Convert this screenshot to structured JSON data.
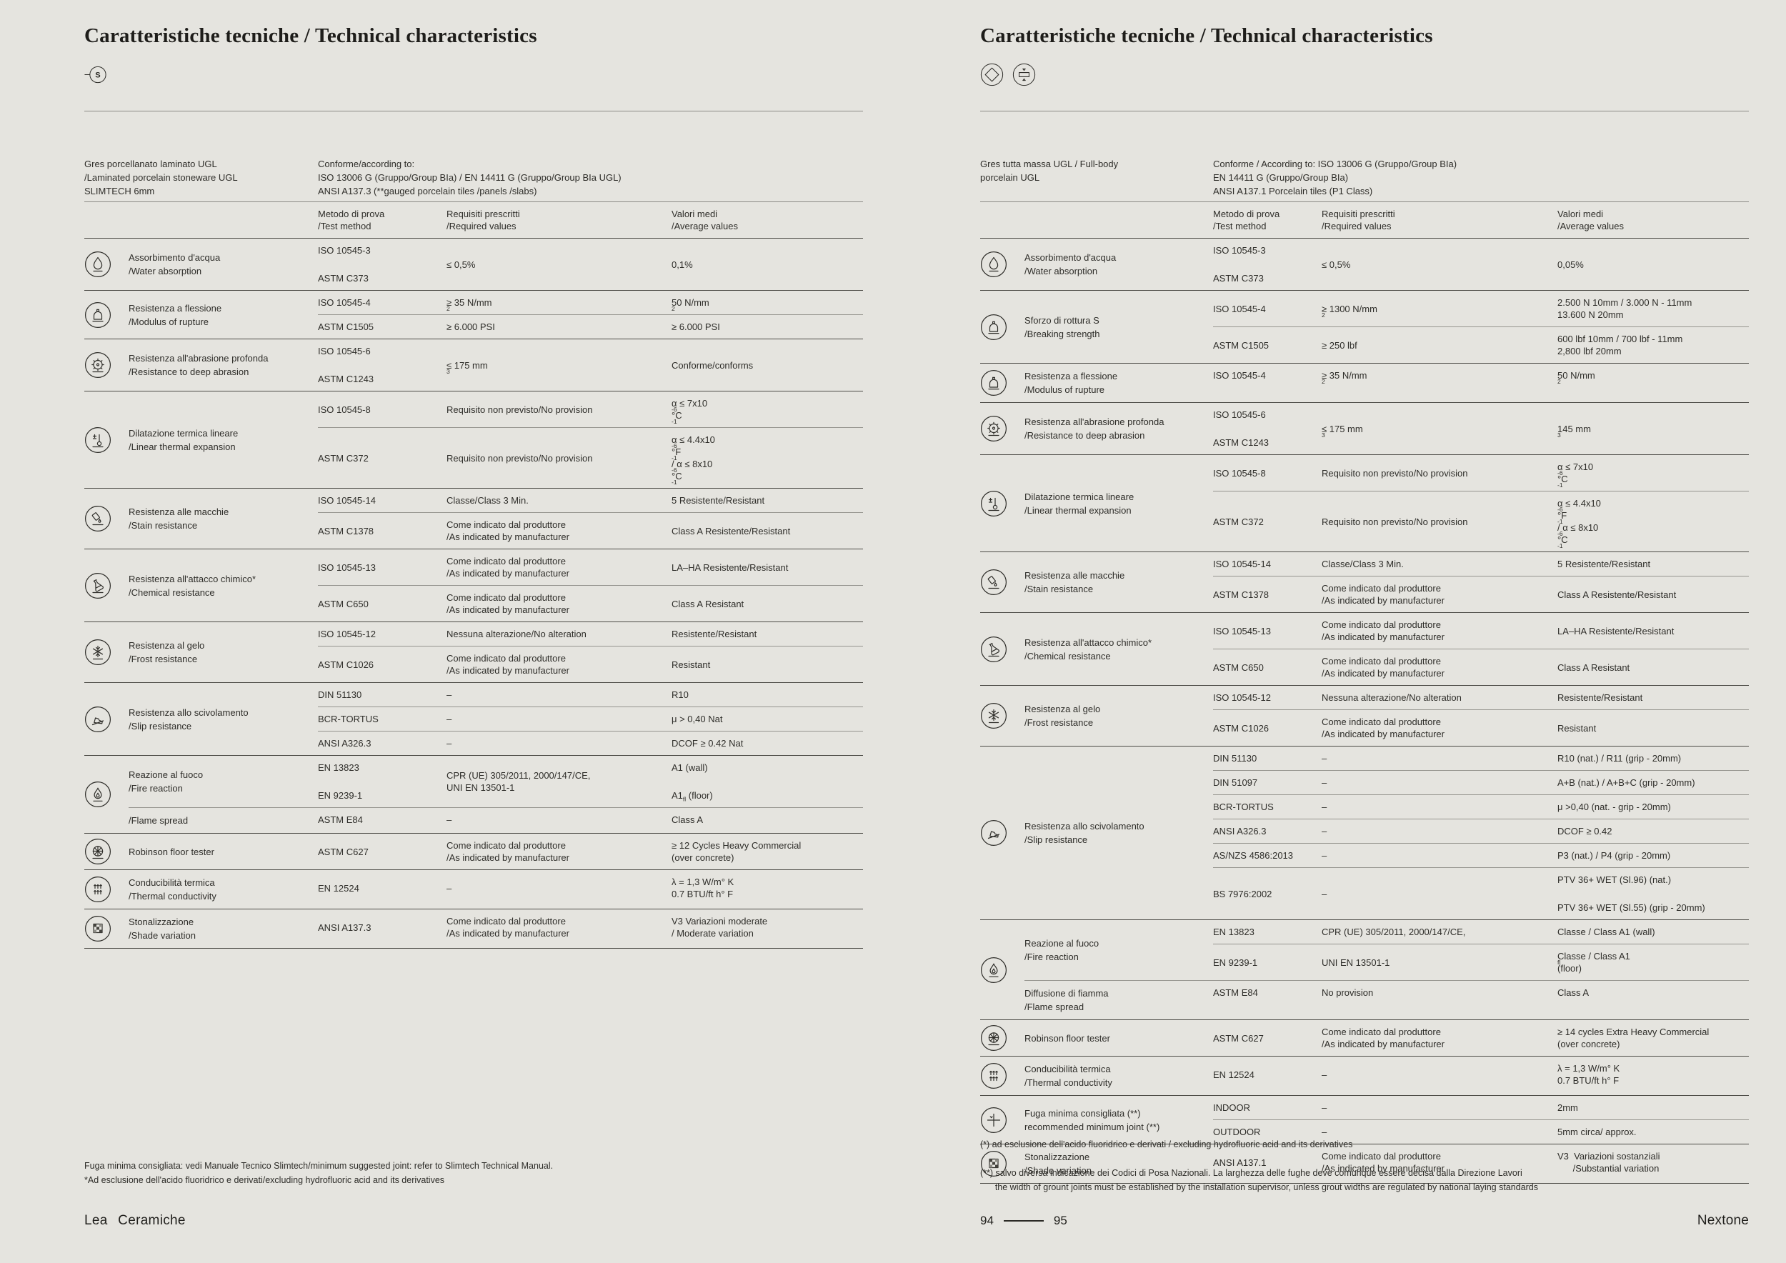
{
  "pages": [
    {
      "title": "Caratteristiche tecniche / Technical characteristics",
      "title_icons": [
        "slimtech"
      ],
      "intro_left": "Gres porcellanato laminato UGL<br>/Laminated porcelain stoneware UGL<br>SLIMTECH 6mm",
      "intro_right": "Conforme/according to:<br>ISO 13006 G (Gruppo/Group BIa) / EN 14411 G (Gruppo/Group BIa UGL)<br>ANSI A137.3 (**gauged porcelain tiles /panels /slabs)",
      "columns": {
        "method": "Metodo di prova<br>/Test method",
        "required": "Requisiti prescritti<br>/Required values",
        "average": "Valori medi<br>/Average values"
      },
      "groups": [
        {
          "icon": "droplet",
          "sections": [
            {
              "label": "Assorbimento d'acqua<br>/Water absorption",
              "rows": [
                {
                  "m": "ISO 10545-3||ASTM C373",
                  "q": "≤ 0,5%",
                  "v": "0,1%"
                }
              ]
            }
          ]
        },
        {
          "icon": "press",
          "sections": [
            {
              "label": "Resistenza a flessione<br>/Modulus of rupture",
              "rows": [
                {
                  "m": "ISO 10545-4",
                  "q": "≥ 35 N/mm<sup>2</sup>",
                  "v": "50 N/mm<sup>2</sup>"
                },
                {
                  "m": "ASTM C1505",
                  "q": "≥ 6.000 PSI",
                  "v": "≥ 6.000 PSI"
                }
              ]
            }
          ]
        },
        {
          "icon": "gear",
          "sections": [
            {
              "label": "Resistenza all'abrasione profonda<br>/Resistance to deep abrasion",
              "rows": [
                {
                  "m": "ISO 10545-6||ASTM C1243",
                  "q": "≤ 175 mm<sup>3</sup>",
                  "v": "Conforme/conforms"
                }
              ]
            }
          ]
        },
        {
          "icon": "thermometer",
          "sections": [
            {
              "label": "Dilatazione termica lineare<br>/Linear thermal expansion",
              "rows": [
                {
                  "m": "ISO 10545-8",
                  "q": "Requisito non previsto/No provision",
                  "v": "α ≤ 7x10<sup>-6</sup> °C<sup>-1</sup>"
                },
                {
                  "m": "ASTM C372",
                  "q": "Requisito non previsto/No provision",
                  "v": "α ≤ 4.4x10<sup>-6</sup> °F<sup>-1</sup> / α ≤ 8x10<sup>-6</sup> °C<sup>-1</sup>"
                }
              ]
            }
          ]
        },
        {
          "icon": "stain",
          "sections": [
            {
              "label": "Resistenza alle macchie<br>/Stain resistance",
              "rows": [
                {
                  "m": "ISO 10545-14",
                  "q": "Classe/Class 3 Min.",
                  "v": "5 Resistente/Resistant"
                },
                {
                  "m": "ASTM C1378",
                  "q": "Come indicato dal produttore<br>/As indicated by manufacturer",
                  "v": "Class A Resistente/Resistant"
                }
              ]
            }
          ]
        },
        {
          "icon": "flask",
          "sections": [
            {
              "label": "Resistenza all'attacco chimico*<br>/Chemical resistance",
              "rows": [
                {
                  "m": "ISO 10545-13",
                  "q": "Come indicato dal produttore<br>/As indicated by manufacturer",
                  "v": "LA–HA Resistente/Resistant"
                },
                {
                  "m": "ASTM C650",
                  "q": "Come indicato dal produttore<br>/As indicated by manufacturer",
                  "v": "Class A Resistant"
                }
              ]
            }
          ]
        },
        {
          "icon": "snowflake",
          "sections": [
            {
              "label": "Resistenza al gelo<br>/Frost resistance",
              "rows": [
                {
                  "m": "ISO 10545-12",
                  "q": "Nessuna alterazione/No alteration",
                  "v": "Resistente/Resistant"
                },
                {
                  "m": "ASTM C1026",
                  "q": "Come indicato dal produttore<br>/As indicated by manufacturer",
                  "v": "Resistant"
                }
              ]
            }
          ]
        },
        {
          "icon": "shoe",
          "sections": [
            {
              "label": "Resistenza allo scivolamento<br>/Slip resistance",
              "rows": [
                {
                  "m": "DIN 51130",
                  "q": "–",
                  "v": "R10"
                },
                {
                  "m": "BCR-TORTUS",
                  "q": "–",
                  "v": "μ > 0,40 Nat"
                },
                {
                  "m": "ANSI A326.3",
                  "q": "–",
                  "v": "DCOF ≥ 0.42 Nat"
                }
              ]
            }
          ]
        },
        {
          "icon": "flame",
          "sections": [
            {
              "label": "Reazione al fuoco<br>/Fire reaction",
              "rows": [
                {
                  "m": "EN 13823||EN 9239-1",
                  "q": "CPR (UE) 305/2011, 2000/147/CE,<br>UNI EN 13501-1",
                  "v": "A1 (wall)||A1<sub>fl</sub> (floor)"
                }
              ]
            },
            {
              "label": "/Flame spread",
              "rows": [
                {
                  "m": "ASTM E84",
                  "q": "–",
                  "v": "Class A"
                }
              ]
            }
          ]
        },
        {
          "icon": "wheel",
          "sections": [
            {
              "label": "Robinson floor tester",
              "rows": [
                {
                  "m": "ASTM C627",
                  "q": "Come indicato dal produttore<br>/As indicated by manufacturer",
                  "v": "≥ 12 Cycles Heavy Commercial<br>(over concrete)"
                }
              ]
            }
          ]
        },
        {
          "icon": "heat-arrows",
          "sections": [
            {
              "label": "Conducibilità termica<br>/Thermal conductivity",
              "rows": [
                {
                  "m": "EN 12524",
                  "q": "–",
                  "v": "λ = 1,3 W/m° K<br>0.7 BTU/ft h° F"
                }
              ]
            }
          ]
        },
        {
          "icon": "checkerboard",
          "sections": [
            {
              "label": "Stonalizzazione<br>/Shade variation",
              "rows": [
                {
                  "m": "ANSI A137.3",
                  "q": "Come indicato dal produttore<br>/As indicated by manufacturer",
                  "v": "V3 Variazioni moderate<br>/ Moderate variation"
                }
              ]
            }
          ]
        }
      ],
      "footnotes_html": "Fuga minima consigliata: vedi Manuale Tecnico Slimtech/minimum suggested joint: refer to Slimtech Technical Manual.<br>*Ad esclusione dell'acido fluoridrico e derivati/excluding hydrofluoric acid and its derivatives",
      "footer": {
        "brand": "Lea Ceramiche"
      }
    },
    {
      "title": "Caratteristiche tecniche / Technical characteristics",
      "title_icons": [
        "diamond",
        "thickness"
      ],
      "intro_left": "Gres tutta massa UGL / Full-body<br>porcelain UGL",
      "intro_right": "Conforme / According to: ISO 13006 G (Gruppo/Group BIa)<br>EN 14411 G (Gruppo/Group BIa)<br>ANSI A137.1 Porcelain tiles (P1 Class)",
      "columns": {
        "method": "Metodo di prova<br>/Test method",
        "required": "Requisiti prescritti<br>/Required values",
        "average": "Valori medi<br>/Average values"
      },
      "groups": [
        {
          "icon": "droplet",
          "sections": [
            {
              "label": "Assorbimento d'acqua<br>/Water absorption",
              "rows": [
                {
                  "m": "ISO 10545-3||ASTM C373",
                  "q": "≤ 0,5%",
                  "v": "0,05%"
                }
              ]
            }
          ]
        },
        {
          "icon": "press",
          "sections": [
            {
              "label": "Sforzo di rottura S<br>/Breaking strength",
              "rows": [
                {
                  "m": "ISO 10545-4",
                  "q": "≥ 1300 N/mm<sup>2</sup>",
                  "v": "2.500 N 10mm / 3.000 N - 11mm<br>13.600 N 20mm"
                },
                {
                  "m": "ASTM C1505",
                  "q": "≥ 250 lbf",
                  "v": "600 lbf 10mm / 700 lbf - 11mm<br>2,800 lbf 20mm"
                }
              ]
            }
          ]
        },
        {
          "icon": "press",
          "sections": [
            {
              "label": "Resistenza a flessione<br>/Modulus of rupture",
              "rows": [
                {
                  "m": "ISO 10545-4",
                  "q": "≥ 35 N/mm<sup>2</sup>",
                  "v": "50 N/mm<sup>2</sup>"
                }
              ]
            }
          ]
        },
        {
          "icon": "gear",
          "sections": [
            {
              "label": "Resistenza all'abrasione profonda<br>/Resistance to deep abrasion",
              "rows": [
                {
                  "m": "ISO 10545-6||ASTM C1243",
                  "q": "≤ 175 mm<sup>3</sup>",
                  "v": "145 mm<sup>3</sup>"
                }
              ]
            }
          ]
        },
        {
          "icon": "thermometer",
          "sections": [
            {
              "label": "Dilatazione termica lineare<br>/Linear thermal expansion",
              "rows": [
                {
                  "m": "ISO 10545-8",
                  "q": "Requisito non previsto/No provision",
                  "v": "α ≤ 7x10<sup>-6</sup> °C<sup>-1</sup>"
                },
                {
                  "m": "ASTM C372",
                  "q": "Requisito non previsto/No provision",
                  "v": "α ≤ 4.4x10<sup>-6</sup> °F<sup>-1</sup> / α ≤ 8x10<sup>-6</sup> °C<sup>-1</sup>"
                }
              ]
            }
          ]
        },
        {
          "icon": "stain",
          "sections": [
            {
              "label": "Resistenza alle macchie<br>/Stain resistance",
              "rows": [
                {
                  "m": "ISO 10545-14",
                  "q": "Classe/Class 3 Min.",
                  "v": "5 Resistente/Resistant"
                },
                {
                  "m": "ASTM C1378",
                  "q": "Come indicato dal produttore<br>/As indicated by manufacturer",
                  "v": "Class A Resistente/Resistant"
                }
              ]
            }
          ]
        },
        {
          "icon": "flask",
          "sections": [
            {
              "label": "Resistenza all'attacco chimico*<br>/Chemical resistance",
              "rows": [
                {
                  "m": "ISO 10545-13",
                  "q": "Come indicato dal produttore<br>/As indicated by manufacturer",
                  "v": "LA–HA Resistente/Resistant"
                },
                {
                  "m": "ASTM C650",
                  "q": "Come indicato dal produttore<br>/As indicated by manufacturer",
                  "v": "Class A Resistant"
                }
              ]
            }
          ]
        },
        {
          "icon": "snowflake",
          "sections": [
            {
              "label": "Resistenza al gelo<br>/Frost resistance",
              "rows": [
                {
                  "m": "ISO 10545-12",
                  "q": "Nessuna alterazione/No alteration",
                  "v": "Resistente/Resistant"
                },
                {
                  "m": "ASTM C1026",
                  "q": "Come indicato dal produttore<br>/As indicated by manufacturer",
                  "v": "Resistant"
                }
              ]
            }
          ]
        },
        {
          "icon": "shoe",
          "sections": [
            {
              "label": "Resistenza allo scivolamento<br>/Slip resistance",
              "rows": [
                {
                  "m": "DIN 51130",
                  "q": "–",
                  "v": "R10 (nat.) / R11 (grip - 20mm)"
                },
                {
                  "m": "DIN 51097",
                  "q": "–",
                  "v": "A+B (nat.) / A+B+C (grip - 20mm)"
                },
                {
                  "m": "BCR-TORTUS",
                  "q": "–",
                  "v": "μ >0,40 (nat. - grip - 20mm)"
                },
                {
                  "m": "ANSI A326.3",
                  "q": "–",
                  "v": "DCOF ≥ 0.42"
                },
                {
                  "m": "AS/NZS 4586:2013",
                  "q": "–",
                  "v": "P3 (nat.) / P4 (grip - 20mm)"
                },
                {
                  "m": "BS 7976:2002",
                  "q": "–",
                  "v": "PTV 36+ WET (Sl.96) (nat.)||PTV 36+ WET (Sl.55) (grip - 20mm)"
                }
              ]
            }
          ]
        },
        {
          "icon": "flame",
          "sections": [
            {
              "label": "Reazione al fuoco<br>/Fire reaction",
              "rows": [
                {
                  "m": "EN 13823",
                  "q": "CPR (UE) 305/2011, 2000/147/CE,",
                  "v": "Classe / Class A1 (wall)"
                },
                {
                  "m": "EN 9239-1",
                  "q": "UNI EN 13501-1",
                  "v": "Classe / Class A1<sup>fl</sup> (floor)"
                }
              ]
            },
            {
              "label": "Diffusione di fiamma<br>/Flame spread",
              "rows": [
                {
                  "m": "ASTM E84",
                  "q": "No provision",
                  "v": "Class A"
                }
              ]
            }
          ]
        },
        {
          "icon": "wheel",
          "sections": [
            {
              "label": "Robinson floor tester",
              "rows": [
                {
                  "m": "ASTM C627",
                  "q": "Come indicato dal produttore<br>/As indicated by manufacturer",
                  "v": "≥ 14 cycles Extra Heavy Commercial<br>(over concrete)"
                }
              ]
            }
          ]
        },
        {
          "icon": "heat-arrows",
          "sections": [
            {
              "label": "Conducibilità termica<br>/Thermal conductivity",
              "rows": [
                {
                  "m": "EN 12524",
                  "q": "–",
                  "v": "λ = 1,3 W/m° K<br>0.7 BTU/ft h° F"
                }
              ]
            }
          ]
        },
        {
          "icon": "joint",
          "sections": [
            {
              "label": "Fuga minima consigliata (**)<br>recommended minimum joint (**)",
              "rows": [
                {
                  "m": "INDOOR",
                  "q": "–",
                  "v": "2mm"
                },
                {
                  "m": "OUTDOOR",
                  "q": "–",
                  "v": "5mm circa/ approx."
                }
              ]
            }
          ]
        },
        {
          "icon": "checkerboard",
          "sections": [
            {
              "label": "Stonalizzazione<br>/Shade variation",
              "rows": [
                {
                  "m": "ANSI A137.1",
                  "q": "Come indicato dal produttore<br>/As indicated by manufacturer",
                  "v": "V3&nbsp;&nbsp;Variazioni sostanziali<br>&nbsp;&nbsp;&nbsp;&nbsp;&nbsp;&nbsp;/Substantial variation"
                }
              ]
            }
          ]
        }
      ],
      "footnotes_html": "(*) ad esclusione dell'acido fluoridrico e derivati / excluding hydrofluoric acid and its derivatives<br><br>(**) salvo diversa indicazione dei Codici di Posa Nazionali. La larghezza delle fughe deve comunque essere decisa dalla Direzione Lavori<br>&nbsp;&nbsp;&nbsp;&nbsp;&nbsp;&nbsp;the width of grount joints must be established by the installation supervisor, unless grout widths are regulated by national laying standards",
      "footer": {
        "page_left": "94",
        "page_right": "95",
        "brand": "Nextone"
      }
    }
  ]
}
